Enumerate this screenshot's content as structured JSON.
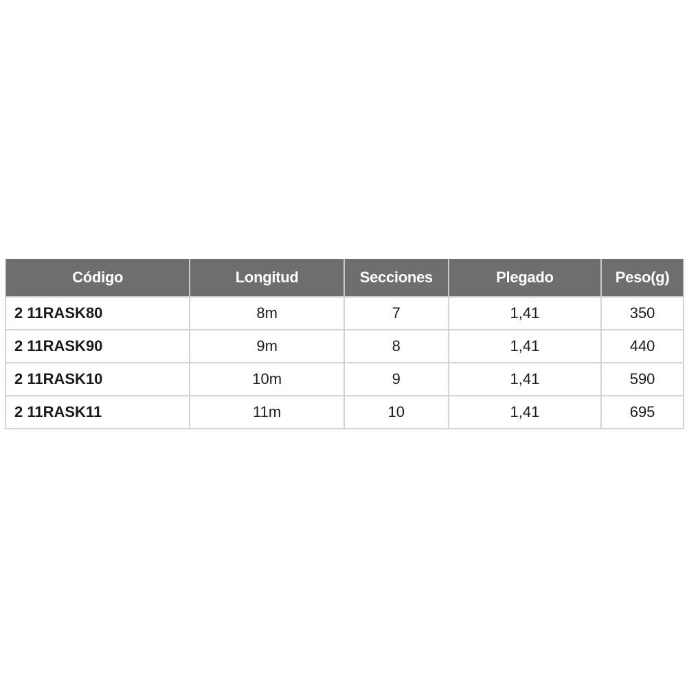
{
  "table": {
    "headers": [
      "Código",
      "Longitud",
      "Secciones",
      "Plegado",
      "Peso(g)"
    ],
    "rows": [
      [
        "2 11RASK80",
        "8m",
        "7",
        "1,41",
        "350"
      ],
      [
        "2 11RASK90",
        "9m",
        "8",
        "1,41",
        "440"
      ],
      [
        "2 11RASK10",
        "10m",
        "9",
        "1,41",
        "590"
      ],
      [
        "2 11RASK11",
        "11m",
        "10",
        "1,41",
        "695"
      ]
    ],
    "header_color": "#6e6e6e"
  }
}
